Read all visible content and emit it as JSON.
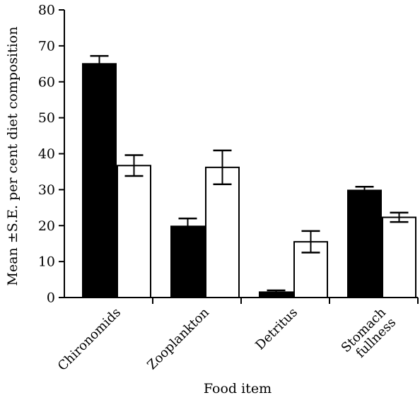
{
  "chart_data": {
    "type": "bar",
    "xlabel": "Food item",
    "ylabel": "Mean ±S.E. per cent diet composition",
    "ylim": [
      0,
      80
    ],
    "yticks": [
      0,
      10,
      20,
      30,
      40,
      50,
      60,
      70,
      80
    ],
    "categories": [
      [
        "Chironomids"
      ],
      [
        "Zooplankton"
      ],
      [
        "Detritus"
      ],
      [
        "Stomach",
        "fullness"
      ]
    ],
    "series": [
      {
        "fill": "#000000",
        "values": [
          65,
          19.8,
          1.5,
          29.8
        ],
        "errors": [
          2.2,
          2.2,
          0.5,
          1.0
        ]
      },
      {
        "fill": "#ffffff",
        "values": [
          36.7,
          36.2,
          15.5,
          22.3
        ],
        "errors": [
          2.9,
          4.7,
          3.0,
          1.3
        ]
      }
    ],
    "grid": false,
    "legend": "none"
  }
}
